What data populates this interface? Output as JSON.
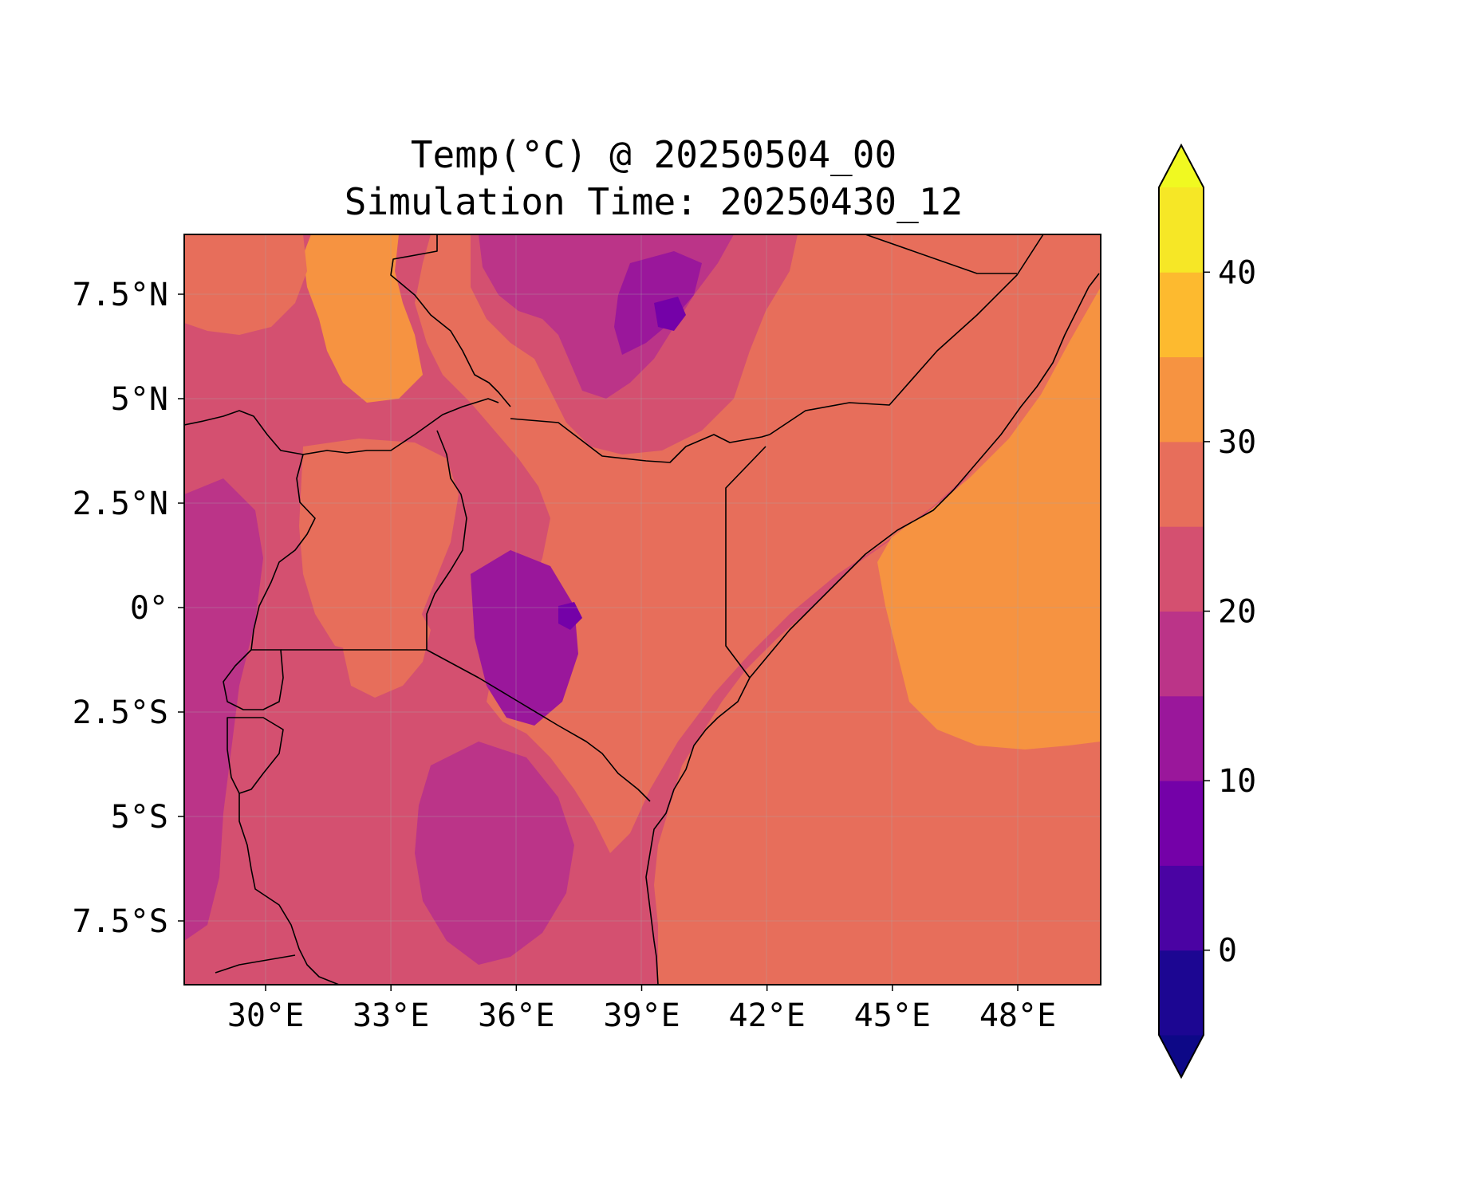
{
  "title": {
    "line1": "Temp(°C) @ 20250504_00",
    "line2": "Simulation Time: 20250430_12"
  },
  "map": {
    "xticks": [
      {
        "lon": 30,
        "label": "30°E"
      },
      {
        "lon": 33,
        "label": "33°E"
      },
      {
        "lon": 36,
        "label": "36°E"
      },
      {
        "lon": 39,
        "label": "39°E"
      },
      {
        "lon": 42,
        "label": "42°E"
      },
      {
        "lon": 45,
        "label": "45°E"
      },
      {
        "lon": 48,
        "label": "48°E"
      }
    ],
    "yticks": [
      {
        "lat": 7.5,
        "label": "7.5°N"
      },
      {
        "lat": 5,
        "label": "5°N"
      },
      {
        "lat": 2.5,
        "label": "2.5°N"
      },
      {
        "lat": 0,
        "label": "0°"
      },
      {
        "lat": -2.5,
        "label": "2.5°S"
      },
      {
        "lat": -5,
        "label": "5°S"
      },
      {
        "lat": -7.5,
        "label": "7.5°S"
      }
    ]
  },
  "colorbar": {
    "levels": [
      -5,
      0,
      5,
      10,
      15,
      20,
      25,
      30,
      35,
      40,
      45
    ],
    "colors": [
      "#1c0692",
      "#4a03a3",
      "#7401a8",
      "#9a179b",
      "#bb3488",
      "#d45070",
      "#e76e5b",
      "#f69341",
      "#fdba2f",
      "#f6e726"
    ],
    "under_color": "#0d0887",
    "over_color": "#f0f921",
    "ticks": [
      {
        "value": 0,
        "label": "0"
      },
      {
        "value": 10,
        "label": "10"
      },
      {
        "value": 20,
        "label": "20"
      },
      {
        "value": 30,
        "label": "30"
      },
      {
        "value": 40,
        "label": "40"
      }
    ]
  }
}
